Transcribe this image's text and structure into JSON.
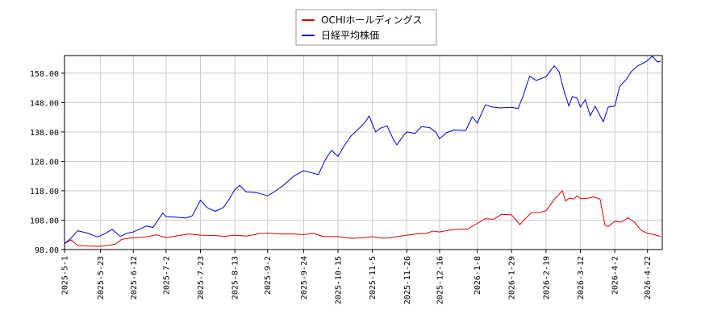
{
  "chart_data": {
    "type": "line",
    "title": "",
    "xlabel": "",
    "ylabel": "",
    "ylim": [
      98,
      164
    ],
    "x_range": [
      "2025-05-01",
      "2026-05-01"
    ],
    "grid": true,
    "legend_placement": "top-center",
    "y_ticks": [
      "98.00",
      "108.00",
      "118.00",
      "128.00",
      "138.00",
      "148.00",
      "158.00"
    ],
    "x_ticks": [
      "2025-5-1",
      "2025-5-23",
      "2025-6-12",
      "2025-7-2",
      "2025-7-23",
      "2025-8-13",
      "2025-9-2",
      "2025-9-24",
      "2025-10-15",
      "2025-11-5",
      "2025-11-26",
      "2025-12-16",
      "2026-1-8",
      "2026-1-29",
      "2026-2-19",
      "2026-3-12",
      "2026-4-2",
      "2026-4-22"
    ],
    "series": [
      {
        "name": "OCHIホールディングス",
        "color": "#dd0000",
        "points": [
          [
            "2025-05-01",
            100.0
          ],
          [
            "2025-05-05",
            101.3
          ],
          [
            "2025-05-09",
            99.4
          ],
          [
            "2025-05-15",
            99.2
          ],
          [
            "2025-05-23",
            99.1
          ],
          [
            "2025-06-01",
            99.8
          ],
          [
            "2025-06-05",
            101.5
          ],
          [
            "2025-06-12",
            102.0
          ],
          [
            "2025-06-20",
            102.3
          ],
          [
            "2025-06-26",
            103.0
          ],
          [
            "2025-07-02",
            102.1
          ],
          [
            "2025-07-10",
            102.8
          ],
          [
            "2025-07-16",
            103.3
          ],
          [
            "2025-07-23",
            102.9
          ],
          [
            "2025-08-01",
            102.8
          ],
          [
            "2025-08-06",
            102.5
          ],
          [
            "2025-08-13",
            102.9
          ],
          [
            "2025-08-20",
            102.6
          ],
          [
            "2025-08-28",
            103.4
          ],
          [
            "2025-09-02",
            103.6
          ],
          [
            "2025-09-10",
            103.3
          ],
          [
            "2025-09-17",
            103.3
          ],
          [
            "2025-09-24",
            103.1
          ],
          [
            "2025-09-30",
            103.5
          ],
          [
            "2025-10-06",
            102.4
          ],
          [
            "2025-10-15",
            102.4
          ],
          [
            "2025-10-23",
            101.8
          ],
          [
            "2025-11-01",
            102.1
          ],
          [
            "2025-11-05",
            102.4
          ],
          [
            "2025-11-10",
            101.9
          ],
          [
            "2025-11-15",
            101.9
          ],
          [
            "2025-11-20",
            102.4
          ],
          [
            "2025-11-26",
            102.9
          ],
          [
            "2025-12-02",
            103.3
          ],
          [
            "2025-12-08",
            103.5
          ],
          [
            "2025-12-12",
            104.3
          ],
          [
            "2025-12-16",
            104.0
          ],
          [
            "2025-12-22",
            104.6
          ],
          [
            "2025-12-28",
            104.9
          ],
          [
            "2026-01-02",
            104.9
          ],
          [
            "2026-01-08",
            106.9
          ],
          [
            "2026-01-13",
            108.5
          ],
          [
            "2026-01-18",
            108.3
          ],
          [
            "2026-01-23",
            110.0
          ],
          [
            "2026-01-29",
            109.8
          ],
          [
            "2026-02-03",
            106.5
          ],
          [
            "2026-02-06",
            108.3
          ],
          [
            "2026-02-10",
            110.5
          ],
          [
            "2026-02-15",
            110.6
          ],
          [
            "2026-02-19",
            111.2
          ],
          [
            "2026-02-24",
            115.0
          ],
          [
            "2026-03-01",
            118.0
          ],
          [
            "2026-03-03",
            114.5
          ],
          [
            "2026-03-05",
            115.5
          ],
          [
            "2026-03-08",
            115.2
          ],
          [
            "2026-03-10",
            116.3
          ],
          [
            "2026-03-12",
            115.3
          ],
          [
            "2026-03-16",
            115.4
          ],
          [
            "2026-03-20",
            115.9
          ],
          [
            "2026-03-24",
            115.2
          ],
          [
            "2026-03-27",
            106.3
          ],
          [
            "2026-03-29",
            105.8
          ],
          [
            "2026-04-02",
            107.6
          ],
          [
            "2026-04-06",
            107.3
          ],
          [
            "2026-04-10",
            108.8
          ],
          [
            "2026-04-14",
            107.3
          ],
          [
            "2026-04-18",
            104.6
          ],
          [
            "2026-04-22",
            103.5
          ],
          [
            "2026-04-26",
            103.1
          ],
          [
            "2026-04-30",
            102.5
          ]
        ]
      },
      {
        "name": "日経平均株価",
        "color": "#0000cc",
        "points": [
          [
            "2025-05-01",
            100.0
          ],
          [
            "2025-05-05",
            101.9
          ],
          [
            "2025-05-09",
            104.4
          ],
          [
            "2025-05-15",
            103.6
          ],
          [
            "2025-05-21",
            102.3
          ],
          [
            "2025-05-26",
            103.5
          ],
          [
            "2025-05-30",
            104.9
          ],
          [
            "2025-06-04",
            102.5
          ],
          [
            "2025-06-08",
            103.5
          ],
          [
            "2025-06-12",
            104.0
          ],
          [
            "2025-06-16",
            105.0
          ],
          [
            "2025-06-20",
            106.0
          ],
          [
            "2025-06-24",
            105.5
          ],
          [
            "2025-06-30",
            110.4
          ],
          [
            "2025-07-02",
            109.2
          ],
          [
            "2025-07-08",
            109.0
          ],
          [
            "2025-07-14",
            108.7
          ],
          [
            "2025-07-18",
            109.5
          ],
          [
            "2025-07-23",
            114.8
          ],
          [
            "2025-07-27",
            112.3
          ],
          [
            "2025-08-01",
            111.0
          ],
          [
            "2025-08-06",
            112.3
          ],
          [
            "2025-08-10",
            115.5
          ],
          [
            "2025-08-13",
            118.4
          ],
          [
            "2025-08-16",
            119.8
          ],
          [
            "2025-08-20",
            117.6
          ],
          [
            "2025-08-26",
            117.4
          ],
          [
            "2025-09-02",
            116.3
          ],
          [
            "2025-09-06",
            117.6
          ],
          [
            "2025-09-12",
            120.0
          ],
          [
            "2025-09-18",
            123.0
          ],
          [
            "2025-09-24",
            124.8
          ],
          [
            "2025-09-29",
            124.1
          ],
          [
            "2025-10-03",
            123.5
          ],
          [
            "2025-10-07",
            128.3
          ],
          [
            "2025-10-11",
            131.8
          ],
          [
            "2025-10-15",
            129.7
          ],
          [
            "2025-10-19",
            133.5
          ],
          [
            "2025-10-23",
            136.7
          ],
          [
            "2025-10-28",
            139.3
          ],
          [
            "2025-11-01",
            141.6
          ],
          [
            "2025-11-03",
            143.5
          ],
          [
            "2025-11-05",
            140.6
          ],
          [
            "2025-11-07",
            138.0
          ],
          [
            "2025-11-10",
            139.3
          ],
          [
            "2025-11-14",
            140.1
          ],
          [
            "2025-11-18",
            135.2
          ],
          [
            "2025-11-20",
            133.6
          ],
          [
            "2025-11-24",
            136.8
          ],
          [
            "2025-11-26",
            138.0
          ],
          [
            "2025-12-01",
            137.5
          ],
          [
            "2025-12-05",
            139.8
          ],
          [
            "2025-12-10",
            139.5
          ],
          [
            "2025-12-14",
            137.8
          ],
          [
            "2025-12-16",
            135.6
          ],
          [
            "2025-12-20",
            137.7
          ],
          [
            "2025-12-25",
            138.7
          ],
          [
            "2026-01-01",
            138.5
          ],
          [
            "2026-01-05",
            143.2
          ],
          [
            "2026-01-08",
            141.0
          ],
          [
            "2026-01-13",
            147.2
          ],
          [
            "2026-01-17",
            146.5
          ],
          [
            "2026-01-22",
            146.2
          ],
          [
            "2026-01-29",
            146.4
          ],
          [
            "2026-02-02",
            146.0
          ],
          [
            "2026-02-05",
            150.2
          ],
          [
            "2026-02-09",
            157.0
          ],
          [
            "2026-02-13",
            155.5
          ],
          [
            "2026-02-19",
            156.8
          ],
          [
            "2026-02-24",
            160.5
          ],
          [
            "2026-02-27",
            158.5
          ],
          [
            "2026-03-02",
            152.0
          ],
          [
            "2026-03-05",
            146.8
          ],
          [
            "2026-03-07",
            150.0
          ],
          [
            "2026-03-10",
            149.5
          ],
          [
            "2026-03-12",
            146.5
          ],
          [
            "2026-03-15",
            149.0
          ],
          [
            "2026-03-18",
            143.5
          ],
          [
            "2026-03-21",
            146.8
          ],
          [
            "2026-03-24",
            143.5
          ],
          [
            "2026-03-26",
            141.5
          ],
          [
            "2026-03-29",
            146.5
          ],
          [
            "2026-04-02",
            146.8
          ],
          [
            "2026-04-05",
            153.5
          ],
          [
            "2026-04-09",
            155.8
          ],
          [
            "2026-04-12",
            158.5
          ],
          [
            "2026-04-16",
            160.5
          ],
          [
            "2026-04-19",
            161.3
          ],
          [
            "2026-04-22",
            162.3
          ],
          [
            "2026-04-25",
            163.8
          ],
          [
            "2026-04-28",
            161.8
          ],
          [
            "2026-04-30",
            162.1
          ]
        ]
      }
    ]
  }
}
